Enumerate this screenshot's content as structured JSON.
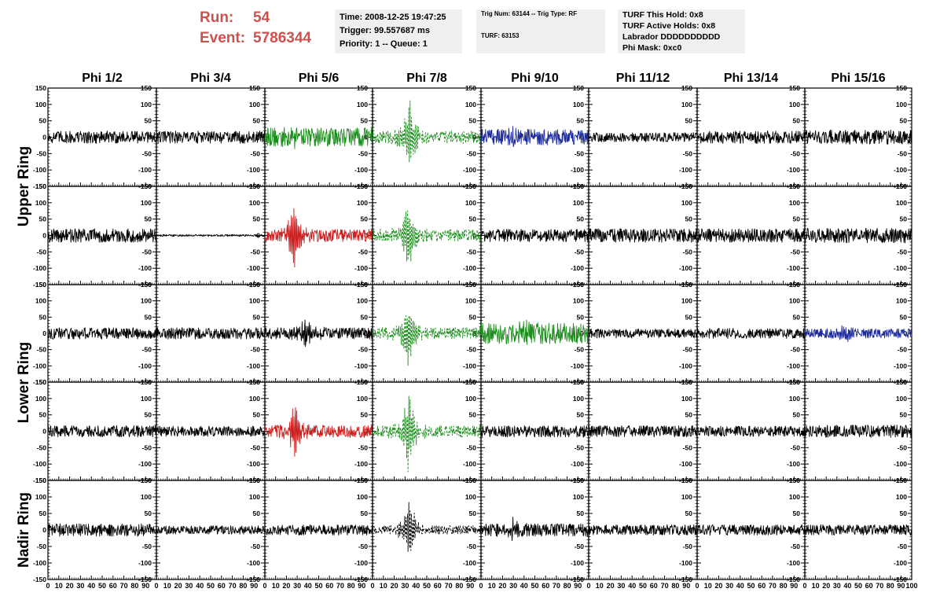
{
  "run_info": {
    "run_label": "Run:",
    "run_value": "54",
    "event_label": "Event:",
    "event_value": "5786344"
  },
  "time_box": {
    "time": "Time: 2008-12-25 19:47:25",
    "trigger": "Trigger: 99.557687 ms",
    "priority": "Priority: 1 -- Queue: 1"
  },
  "trig_box": {
    "trig": "Trig Num: 63144 -- Trig Type: RF",
    "turf": "TURF: 63153"
  },
  "turf_box": {
    "this_hold": "TURF This Hold: 0x8",
    "active_holds": "TURF Active Holds: 0x8",
    "labrador": "Labrador DDDDDDDDDD",
    "phi_mask": "Phi Mask: 0xc0"
  },
  "colors": {
    "run_text": "#d0504c",
    "box_bg": "#efefef",
    "waveform_default": "#000000",
    "waveform_green": "#1c8c1c",
    "waveform_red": "#cc2020",
    "waveform_blue": "#1c2a9c"
  },
  "chart_data": {
    "type": "line",
    "columns": [
      "Phi 1/2",
      "Phi 3/4",
      "Phi 5/6",
      "Phi 7/8",
      "Phi 9/10",
      "Phi 11/12",
      "Phi 13/14",
      "Phi 15/16"
    ],
    "row_labels": [
      "Upper Ring",
      "Lower Ring",
      "Nadir Ring"
    ],
    "xlim": [
      0,
      100
    ],
    "ylim": [
      -150,
      150
    ],
    "y_ticks": [
      -150,
      -100,
      -50,
      0,
      50,
      100,
      150
    ],
    "x_tick_labels": [
      "0",
      "10",
      "20",
      "30",
      "40",
      "50",
      "60",
      "70",
      "80",
      "90",
      "100"
    ],
    "grid": false,
    "panels": [
      [
        {
          "color": "black",
          "amp": 12,
          "burst": 0
        },
        {
          "color": "black",
          "amp": 12,
          "burst": 0
        },
        {
          "color": "green",
          "amp": 18,
          "burst": 22,
          "center": 28
        },
        {
          "color": "green-dashed",
          "amp": 12,
          "burst": 130,
          "center": 34
        },
        {
          "color": "blue",
          "amp": 15,
          "burst": 20,
          "center": 30
        },
        {
          "color": "black",
          "amp": 9,
          "burst": 0
        },
        {
          "color": "black",
          "amp": 12,
          "burst": 0
        },
        {
          "color": "black",
          "amp": 14,
          "burst": 0
        }
      ],
      [
        {
          "color": "black",
          "amp": 13,
          "burst": 0
        },
        {
          "color": "black",
          "amp": 2,
          "burst": 0
        },
        {
          "color": "red",
          "amp": 12,
          "burst": 110,
          "center": 27
        },
        {
          "color": "green-dashed",
          "amp": 12,
          "burst": 120,
          "center": 33
        },
        {
          "color": "black",
          "amp": 12,
          "burst": 0
        },
        {
          "color": "black",
          "amp": 13,
          "burst": 0
        },
        {
          "color": "black",
          "amp": 13,
          "burst": 0
        },
        {
          "color": "black",
          "amp": 14,
          "burst": 0
        }
      ],
      [
        {
          "color": "black",
          "amp": 11,
          "burst": 0
        },
        {
          "color": "black",
          "amp": 11,
          "burst": 0
        },
        {
          "color": "black",
          "amp": 11,
          "burst": 50,
          "center": 38
        },
        {
          "color": "green-dashed",
          "amp": 11,
          "burst": 120,
          "center": 33
        },
        {
          "color": "green",
          "amp": 20,
          "burst": 25,
          "center": 40
        },
        {
          "color": "black",
          "amp": 9,
          "burst": 0
        },
        {
          "color": "black",
          "amp": 10,
          "burst": 0
        },
        {
          "color": "blue",
          "amp": 9,
          "burst": 25,
          "center": 38
        }
      ],
      [
        {
          "color": "black",
          "amp": 11,
          "burst": 0
        },
        {
          "color": "black",
          "amp": 10,
          "burst": 0
        },
        {
          "color": "red",
          "amp": 12,
          "burst": 90,
          "center": 28
        },
        {
          "color": "green-dashed",
          "amp": 11,
          "burst": 130,
          "center": 33
        },
        {
          "color": "black",
          "amp": 11,
          "burst": 0
        },
        {
          "color": "black",
          "amp": 11,
          "burst": 0
        },
        {
          "color": "black",
          "amp": 10,
          "burst": 0
        },
        {
          "color": "black",
          "amp": 12,
          "burst": 0
        }
      ],
      [
        {
          "color": "black",
          "amp": 12,
          "burst": 0
        },
        {
          "color": "black",
          "amp": 8,
          "burst": 0
        },
        {
          "color": "black",
          "amp": 10,
          "burst": 0
        },
        {
          "color": "black-dashed",
          "amp": 8,
          "burst": 100,
          "center": 34
        },
        {
          "color": "black",
          "amp": 12,
          "burst": 30,
          "center": 30
        },
        {
          "color": "black",
          "amp": 10,
          "burst": 0
        },
        {
          "color": "black",
          "amp": 10,
          "burst": 0
        },
        {
          "color": "black",
          "amp": 10,
          "burst": 0
        }
      ]
    ]
  }
}
